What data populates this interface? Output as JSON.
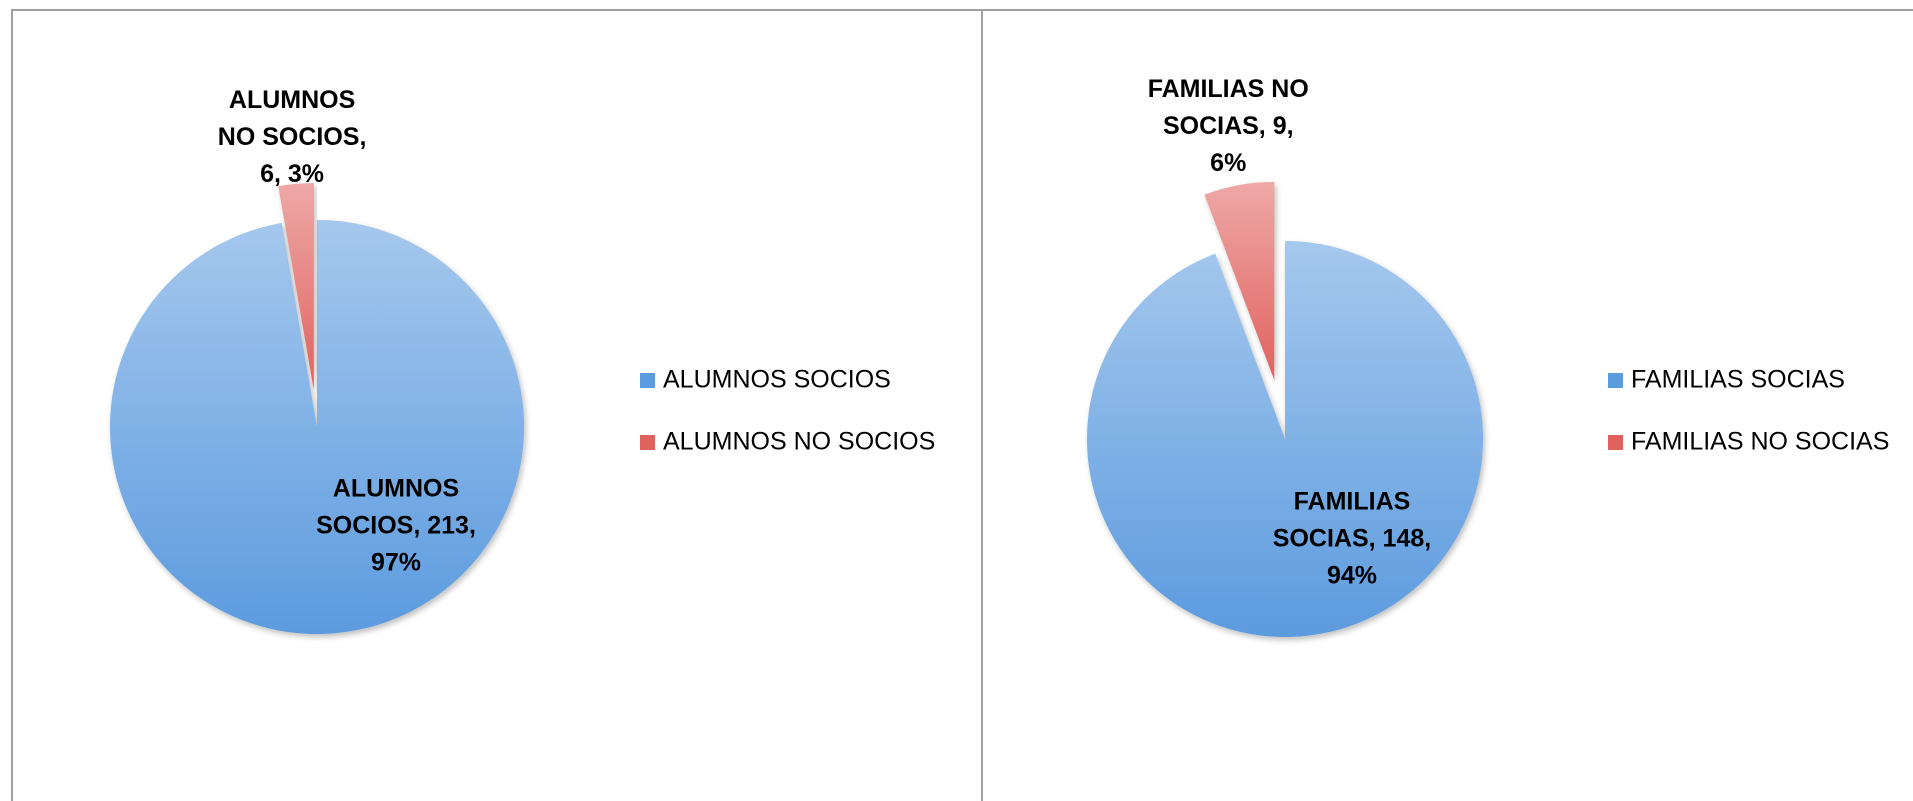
{
  "chart_data": [
    {
      "type": "pie",
      "categories": [
        "ALUMNOS SOCIOS",
        "ALUMNOS NO SOCIOS"
      ],
      "values": [
        213,
        6
      ],
      "value_labels": [
        [
          "ALUMNOS",
          "SOCIOS, 213,",
          "97%"
        ],
        [
          "ALUMNOS",
          "NO SOCIOS,",
          "6, 3%"
        ]
      ],
      "colors": [
        "#5b9bdf",
        "#e0625e"
      ],
      "legend": "right"
    },
    {
      "type": "pie",
      "categories": [
        "FAMILIAS SOCIAS",
        "FAMILIAS NO SOCIAS"
      ],
      "values": [
        148,
        9
      ],
      "value_labels": [
        [
          "FAMILIAS",
          "SOCIAS, 148,",
          "94%"
        ],
        [
          "FAMILIAS NO",
          "SOCIAS, 9,",
          "6%"
        ]
      ],
      "colors": [
        "#5b9bdf",
        "#e0625e"
      ],
      "legend": "right"
    }
  ]
}
